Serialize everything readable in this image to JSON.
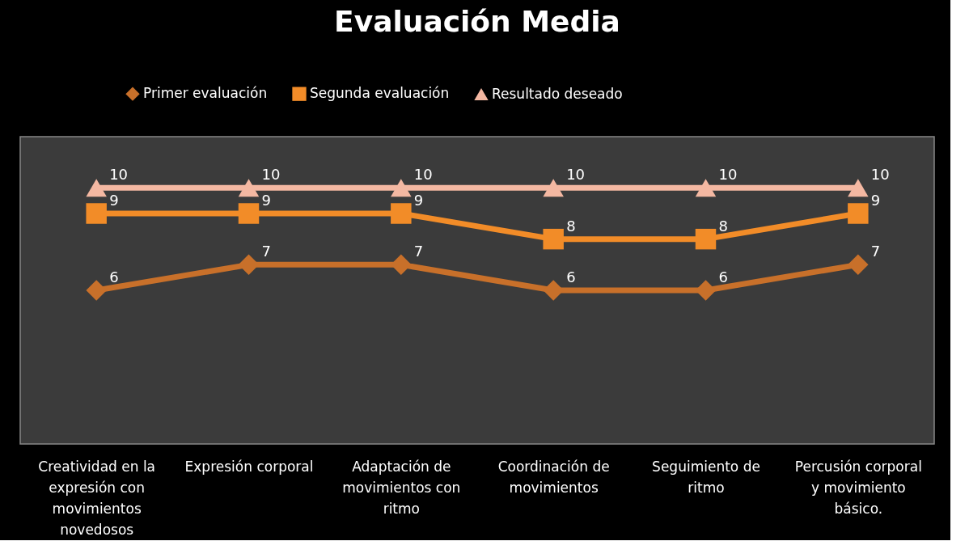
{
  "chart_data": {
    "type": "line",
    "title": "Evaluación Media",
    "categories": [
      "Creatividad en la expresión con movimientos novedosos",
      "Expresión corporal",
      "Adaptación de movimientos con ritmo",
      "Coordinación de movimientos",
      "Seguimiento de ritmo",
      "Percusión corporal y movimiento básico."
    ],
    "series": [
      {
        "name": "Primer evaluación",
        "color": "#c8702a",
        "marker": "diamond",
        "values": [
          6,
          7,
          7,
          6,
          6,
          7
        ]
      },
      {
        "name": "Segunda evaluación",
        "color": "#f28c28",
        "marker": "square",
        "values": [
          9,
          9,
          9,
          8,
          8,
          9
        ]
      },
      {
        "name": "Resultado deseado",
        "color": "#f4b8a2",
        "marker": "triangle",
        "values": [
          10,
          10,
          10,
          10,
          10,
          10
        ]
      }
    ],
    "ylim": [
      0,
      12
    ],
    "tick_labels": "x",
    "data_labels": true,
    "legend": "top",
    "line_style": "solid"
  }
}
